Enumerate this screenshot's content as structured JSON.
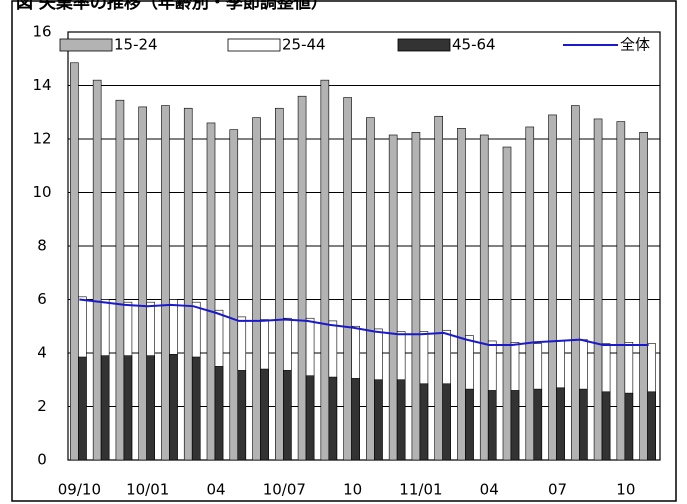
{
  "chart_data": {
    "type": "bar-line",
    "title": "図 失業率の推移（年齢別・季節調整値）",
    "categories": [
      "09/10",
      null,
      null,
      "10/01",
      null,
      null,
      "04",
      null,
      null,
      "10/07",
      null,
      null,
      "10",
      null,
      null,
      "11/01",
      null,
      null,
      "04",
      null,
      null,
      "07",
      null,
      null,
      "10",
      null
    ],
    "series": [
      {
        "name": "15-24",
        "kind": "bar",
        "color": "#b3b3b3",
        "values": [
          14.85,
          14.2,
          13.45,
          13.2,
          13.25,
          13.15,
          12.6,
          12.35,
          12.8,
          13.15,
          13.6,
          14.2,
          13.55,
          12.8,
          12.15,
          12.25,
          12.85,
          12.4,
          12.15,
          11.7,
          12.45,
          12.9,
          13.25,
          12.75,
          12.65,
          12.25
        ]
      },
      {
        "name": "25-44",
        "kind": "bar",
        "color": "#ffffff",
        "values": [
          6.1,
          6.0,
          5.9,
          5.9,
          6.0,
          5.9,
          5.6,
          5.35,
          5.25,
          5.3,
          5.3,
          5.2,
          5.0,
          4.9,
          4.8,
          4.8,
          4.85,
          4.65,
          4.45,
          4.4,
          4.35,
          4.45,
          4.5,
          4.35,
          4.4,
          4.35
        ]
      },
      {
        "name": "45-64",
        "kind": "bar",
        "color": "#333333",
        "values": [
          3.85,
          3.9,
          3.9,
          3.9,
          3.95,
          3.85,
          3.5,
          3.35,
          3.4,
          3.35,
          3.15,
          3.1,
          3.05,
          3.0,
          3.0,
          2.85,
          2.85,
          2.65,
          2.6,
          2.6,
          2.65,
          2.7,
          2.65,
          2.55,
          2.5,
          2.55
        ]
      },
      {
        "name": "全体",
        "kind": "line",
        "color": "#1a1acc",
        "values": [
          6.0,
          5.9,
          5.8,
          5.75,
          5.8,
          5.75,
          5.5,
          5.2,
          5.2,
          5.25,
          5.2,
          5.05,
          4.95,
          4.8,
          4.7,
          4.7,
          4.75,
          4.5,
          4.3,
          4.3,
          4.4,
          4.45,
          4.5,
          4.3,
          4.3,
          4.3
        ]
      }
    ],
    "ylim": [
      0,
      16
    ],
    "yticks": [
      0,
      2,
      4,
      6,
      8,
      10,
      12,
      14,
      16
    ],
    "grid": true,
    "legend": "top"
  }
}
